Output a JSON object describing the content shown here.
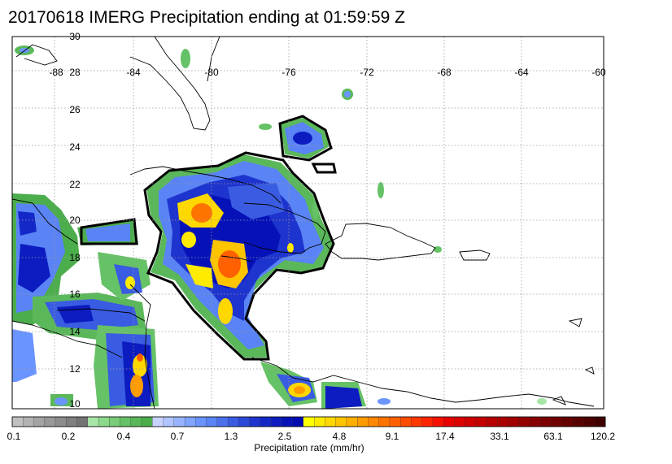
{
  "title": "20170618 IMERG Precipitation ending at 01:59:59 Z",
  "map": {
    "lon_labels": [
      "-88",
      "-84",
      "-80",
      "-76",
      "-72",
      "-68",
      "-64",
      "-60"
    ],
    "lat_labels": [
      "30",
      "28",
      "26",
      "24",
      "22",
      "20",
      "18",
      "16",
      "14",
      "12",
      "10"
    ],
    "grid": "dotted"
  },
  "colorbar": {
    "title": "Precipitation rate (mm/hr)",
    "tick_labels": [
      "0.1",
      "0.2",
      "0.4",
      "0.7",
      "1.3",
      "2.5",
      "4.8",
      "9.1",
      "17.4",
      "33.1",
      "63.1",
      "120.2"
    ],
    "colors": [
      "#c0c0c0",
      "#b2b2b2",
      "#a4a4a4",
      "#989898",
      "#8c8c8c",
      "#808080",
      "#747474",
      "#a8e6a8",
      "#8cd98c",
      "#78cc78",
      "#66c266",
      "#5ab85a",
      "#4cad4c",
      "#c8d4ff",
      "#b0c4ff",
      "#98b4ff",
      "#80a4ff",
      "#6a94ff",
      "#5a84f5",
      "#4a70ec",
      "#3a5ce2",
      "#2c48d8",
      "#1e34ce",
      "#1428c8",
      "#0c1cc0",
      "#0612b8",
      "#000cb0",
      "#ffff00",
      "#ffeb00",
      "#ffd800",
      "#ffc400",
      "#ffb000",
      "#ff9c00",
      "#ff8800",
      "#ff7400",
      "#ff6000",
      "#ff4c00",
      "#ff3800",
      "#ff2400",
      "#f51000",
      "#e80000",
      "#dc0000",
      "#d00000",
      "#c40000",
      "#b80000",
      "#ac0000",
      "#a00000",
      "#940000",
      "#880000",
      "#7c0000",
      "#700000",
      "#640000",
      "#580000",
      "#4c0000",
      "#400000"
    ]
  }
}
